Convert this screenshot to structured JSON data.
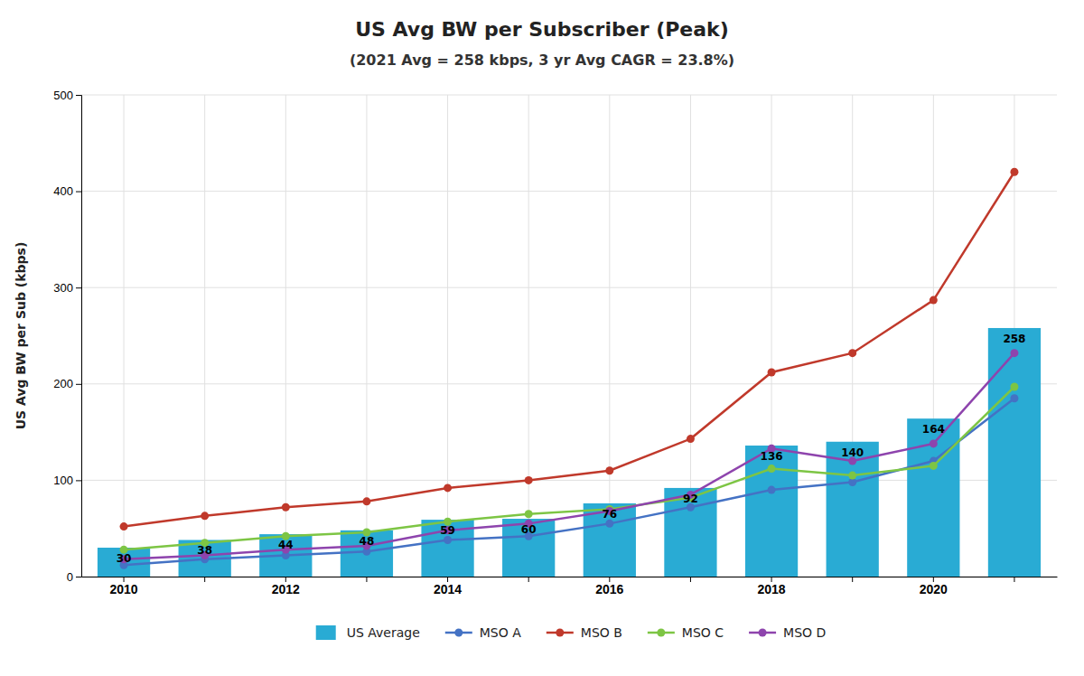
{
  "chart_data": {
    "type": "bar",
    "title": "US Avg BW per Subscriber (Peak)",
    "subtitle": "(2021 Avg = 258 kbps, 3 yr Avg CAGR = 23.8%)",
    "y_label": "US Avg BW per Sub (kbps)",
    "categories": [
      "2010",
      null,
      "2012",
      null,
      "2014",
      null,
      "2016",
      null,
      "2018",
      null,
      "2020",
      null
    ],
    "series": [
      {
        "name": "US Average",
        "type": "bar",
        "color": "#29ABD4",
        "data_labels": true,
        "values": [
          30,
          38,
          44,
          48,
          59,
          60,
          76,
          92,
          136,
          140,
          164,
          258
        ]
      },
      {
        "name": "MSO A",
        "type": "line",
        "color": "#4472C4",
        "marker": "circle",
        "line_style": "solid",
        "values": [
          12,
          18,
          22,
          26,
          38,
          42,
          55,
          72,
          90,
          98,
          120,
          185
        ]
      },
      {
        "name": "MSO B",
        "type": "line",
        "color": "#C0392B",
        "marker": "circle",
        "line_style": "solid",
        "values": [
          52,
          63,
          72,
          78,
          92,
          100,
          110,
          143,
          212,
          232,
          287,
          420
        ]
      },
      {
        "name": "MSO C",
        "type": "line",
        "color": "#7DC544",
        "marker": "circle",
        "line_style": "solid",
        "values": [
          28,
          35,
          42,
          46,
          57,
          65,
          70,
          82,
          112,
          105,
          115,
          197
        ]
      },
      {
        "name": "MSO D",
        "type": "line",
        "color": "#8E44AD",
        "marker": "circle",
        "line_style": "solid",
        "values": [
          18,
          22,
          28,
          32,
          48,
          55,
          68,
          85,
          133,
          120,
          138,
          232
        ]
      }
    ],
    "ylim": [
      0,
      500
    ],
    "yticks": [
      0,
      100,
      200,
      300,
      400,
      500
    ],
    "grid": true,
    "legend": "bottom"
  }
}
